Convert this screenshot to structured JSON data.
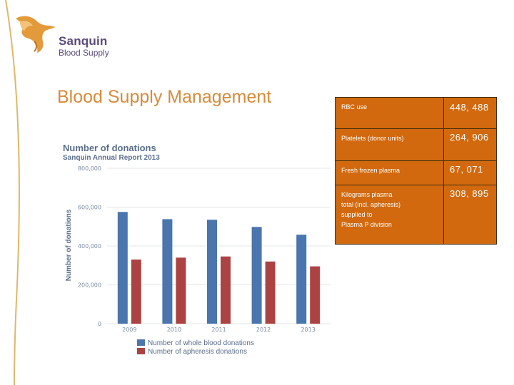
{
  "logo": {
    "name": "Sanquin",
    "subtitle": "Blood Supply"
  },
  "slide_title": "Blood Supply Management",
  "stats_table": {
    "rows": [
      {
        "label": "RBC use",
        "value": "448, 488"
      },
      {
        "label": "Platelets (donor units)",
        "value": "264, 906"
      },
      {
        "label": "Fresh frozen plasma",
        "value": "67, 071"
      },
      {
        "label_lines": [
          "Kilograms plasma",
          "total (incl. apheresis)",
          "supplied to",
          "Plasma P division"
        ],
        "value": "308, 895"
      }
    ]
  },
  "colors": {
    "table_bg": "#d2690e",
    "title_orange": "#d98a3a",
    "whole_blood": "#4a75ad",
    "apheresis": "#ac4343"
  },
  "chart_data": {
    "type": "bar",
    "title": "Number of donations",
    "subtitle": "Sanquin Annual Report 2013",
    "xlabel": "",
    "ylabel": "Number of donations",
    "categories": [
      "2009",
      "2010",
      "2011",
      "2012",
      "2013"
    ],
    "series": [
      {
        "name": "Number of whole blood donations",
        "color": "#4a75ad",
        "values": [
          575000,
          538000,
          535000,
          498000,
          458000
        ]
      },
      {
        "name": "Number of apheresis donations",
        "color": "#ac4343",
        "values": [
          330000,
          340000,
          346000,
          320000,
          295000
        ]
      }
    ],
    "ylim": [
      0,
      800000
    ],
    "yticks": [
      0,
      200000,
      400000,
      600000,
      800000
    ],
    "ytick_labels": [
      "0",
      "200,000",
      "400,000",
      "600,000",
      "800,000"
    ],
    "grid": true,
    "legend_position": "bottom-left"
  }
}
